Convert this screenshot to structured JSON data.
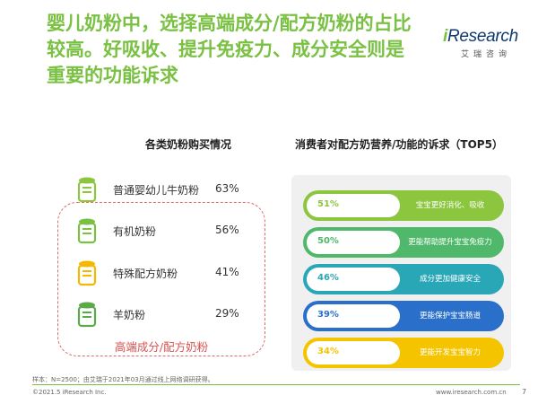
{
  "header": {
    "title_line1": "婴儿奶粉中，选择高端成分/配方奶粉的占比",
    "title_line2": "较高。好吸收、提升免疫力、成分安全则是",
    "title_line3": "重要的功能诉求"
  },
  "logo": {
    "prefix": "i",
    "word": "Research",
    "sub": "艾瑞咨询"
  },
  "left": {
    "heading": "各类奶粉购买情况",
    "items": [
      {
        "label": "普通婴幼儿牛奶粉",
        "pct": "63%",
        "icon": "milk-can-icon",
        "color": "#8cc63f"
      },
      {
        "label": "有机奶粉",
        "pct": "56%",
        "icon": "milk-can-icon",
        "color": "#7ac143"
      },
      {
        "label": "特殊配方奶粉",
        "pct": "41%",
        "icon": "milk-can-icon",
        "color": "#f5b800"
      },
      {
        "label": "羊奶粉",
        "pct": "29%",
        "icon": "milk-can-icon",
        "color": "#5aaa4a"
      }
    ],
    "premium_label": "高端成分/配方奶粉"
  },
  "right": {
    "heading": "消费者对配方奶营养/功能的诉求（TOP5）",
    "items": [
      {
        "pct": "51%",
        "text": "宝宝更好消化、吸收",
        "color": "#8cc63f"
      },
      {
        "pct": "50%",
        "text": "更能帮助提升宝宝免疫力",
        "color": "#4fb86a"
      },
      {
        "pct": "46%",
        "text": "成分更加健康安全",
        "color": "#2aa7b6"
      },
      {
        "pct": "39%",
        "text": "更能保护宝宝肠道",
        "color": "#2a6fc9"
      },
      {
        "pct": "34%",
        "text": "更能开发宝宝智力",
        "color": "#f5c400"
      }
    ]
  },
  "footer": {
    "note": "样本：N=2500；由艾瑞于2021年03月通过线上网络调研获得。",
    "copyright": "©2021.5 iResearch Inc.",
    "site": "www.iresearch.com.cn",
    "page": "7"
  }
}
